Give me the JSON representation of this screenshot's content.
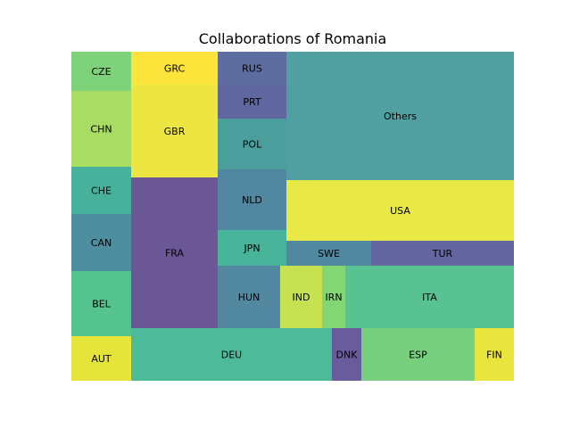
{
  "chart_data": {
    "type": "treemap",
    "title": "Collaborations of Romania",
    "cells": [
      {
        "label": "CZE",
        "color": "#7ed279"
      },
      {
        "label": "CHN",
        "color": "#a8dc62"
      },
      {
        "label": "CHE",
        "color": "#48b19c"
      },
      {
        "label": "CAN",
        "color": "#4f8e9e"
      },
      {
        "label": "BEL",
        "color": "#55c38e"
      },
      {
        "label": "AUT",
        "color": "#e4e43a"
      },
      {
        "label": "GRC",
        "color": "#fde43a"
      },
      {
        "label": "GBR",
        "color": "#ede542"
      },
      {
        "label": "FRA",
        "color": "#6b5696"
      },
      {
        "label": "RUS",
        "color": "#5e6da0"
      },
      {
        "label": "PRT",
        "color": "#6066a0"
      },
      {
        "label": "POL",
        "color": "#4a9e9c"
      },
      {
        "label": "NLD",
        "color": "#5187a0"
      },
      {
        "label": "JPN",
        "color": "#48b49a"
      },
      {
        "label": "HUN",
        "color": "#5289a0"
      },
      {
        "label": "DEU",
        "color": "#4dba9a"
      },
      {
        "label": "Others",
        "color": "#50a0a2"
      },
      {
        "label": "USA",
        "color": "#e8e846"
      },
      {
        "label": "SWE",
        "color": "#5188a0"
      },
      {
        "label": "TUR",
        "color": "#6466a0"
      },
      {
        "label": "IND",
        "color": "#c6e250"
      },
      {
        "label": "IRN",
        "color": "#84d674"
      },
      {
        "label": "ITA",
        "color": "#58c292"
      },
      {
        "label": "DNK",
        "color": "#6a5b9c"
      },
      {
        "label": "ESP",
        "color": "#76d07e"
      },
      {
        "label": "FIN",
        "color": "#eae43e"
      }
    ]
  }
}
